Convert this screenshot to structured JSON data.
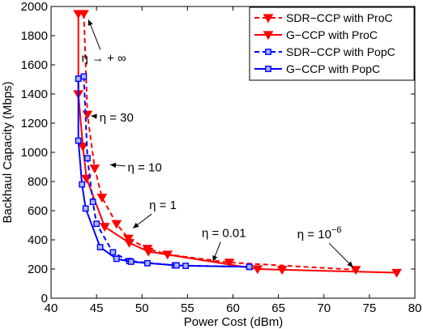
{
  "chart_data": {
    "type": "line",
    "title": "",
    "xlabel": "Power Cost (dBm)",
    "ylabel": "Backhaul Capacity (Mbps)",
    "xlim": [
      40,
      80
    ],
    "ylim": [
      0,
      2000
    ],
    "xticks": [
      40,
      45,
      50,
      55,
      60,
      65,
      70,
      75,
      80
    ],
    "yticks": [
      0,
      200,
      400,
      600,
      800,
      1000,
      1200,
      1400,
      1600,
      1800,
      2000
    ],
    "grid": false,
    "legend_position": "top-right",
    "series": [
      {
        "name": "SDR−CCP with ProC",
        "color": "#ff0000",
        "line_style": "dashed",
        "marker": "triangle-down",
        "x": [
          43.6,
          44.0,
          44.8,
          45.6,
          47.2,
          48.5,
          50.6,
          52.8,
          59.6,
          73.5
        ],
        "y": [
          1950,
          1260,
          890,
          690,
          510,
          410,
          340,
          300,
          245,
          195
        ]
      },
      {
        "name": "G−CCP with ProC",
        "color": "#ff0000",
        "line_style": "solid",
        "marker": "triangle-down",
        "x": [
          43.0,
          43.0,
          43.5,
          43.9,
          45.9,
          48.6,
          50.7,
          62.7,
          65.4,
          78.0
        ],
        "y": [
          1950,
          1400,
          1040,
          820,
          490,
          380,
          320,
          200,
          195,
          175
        ]
      },
      {
        "name": "SDR−CCP with PopC",
        "color": "#0000ff",
        "line_style": "dashed",
        "marker": "square",
        "x": [
          43.6,
          44.0,
          44.6,
          45.0,
          46.8,
          48.6,
          53.6,
          61.8
        ],
        "y": [
          1520,
          960,
          660,
          510,
          315,
          255,
          225,
          215
        ]
      },
      {
        "name": "G−CCP with PopC",
        "color": "#0000ff",
        "line_style": "solid",
        "marker": "square",
        "x": [
          43.0,
          43.0,
          43.4,
          43.8,
          45.4,
          47.2,
          48.8,
          50.6,
          53.8,
          54.8,
          61.8
        ],
        "y": [
          1505,
          1080,
          780,
          615,
          350,
          270,
          250,
          240,
          225,
          222,
          215
        ]
      }
    ],
    "annotations": [
      {
        "text": "η → + ∞",
        "at": [
          45.8,
          1620
        ],
        "arrow_to": [
          44.1,
          1910
        ]
      },
      {
        "text": "η = 30",
        "at": [
          47.2,
          1210
        ],
        "arrow_to": [
          44.4,
          1250
        ]
      },
      {
        "text": "η = 10",
        "at": [
          50.3,
          870
        ],
        "arrow_to": [
          46.5,
          915
        ]
      },
      {
        "text": "η = 1",
        "at": [
          52.3,
          610
        ],
        "arrow_to": [
          49.0,
          480
        ]
      },
      {
        "text": "η = 0.01",
        "at": [
          59.0,
          420
        ],
        "arrow_to": [
          57.8,
          252
        ]
      },
      {
        "text": "η = 10",
        "sup": "−6",
        "at": [
          69.5,
          410
        ],
        "arrow_to": [
          73.2,
          212
        ]
      }
    ]
  }
}
